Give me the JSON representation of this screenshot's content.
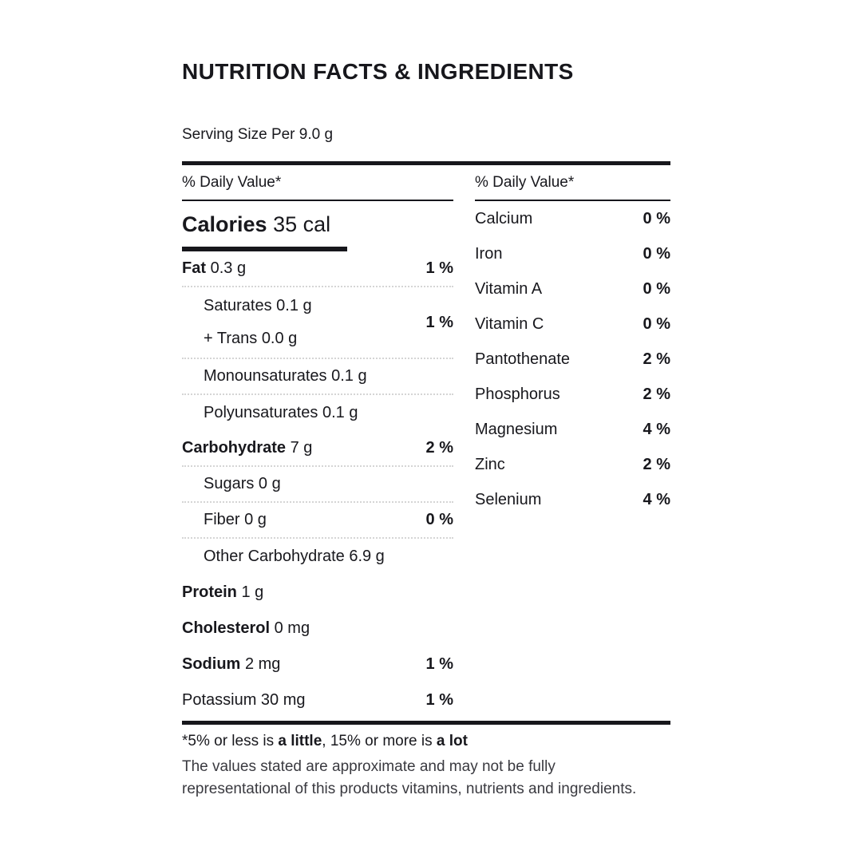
{
  "header": {
    "title": "NUTRITION FACTS & INGREDIENTS",
    "serving_size": "Serving Size Per 9.0 g"
  },
  "left": {
    "header": "% Daily Value*",
    "calories": {
      "label": "Calories",
      "value": "35 cal"
    },
    "rows": [
      {
        "bold": "Fat",
        "rest": "0.3 g",
        "percent": "1 %"
      },
      {
        "line1": "Saturates 0.1 g",
        "line2": "+ Trans 0.0 g",
        "percent": "1 %"
      },
      {
        "rest": "Monounsaturates 0.1 g"
      },
      {
        "rest": "Polyunsaturates 0.1 g"
      },
      {
        "bold": "Carbohydrate",
        "rest": "7 g",
        "percent": "2 %"
      },
      {
        "rest": "Sugars 0 g"
      },
      {
        "rest": "Fiber 0 g",
        "percent": "0 %"
      },
      {
        "rest": "Other Carbohydrate 6.9 g"
      },
      {
        "bold": "Protein",
        "rest": "1 g"
      },
      {
        "bold": "Cholesterol",
        "rest": "0 mg"
      },
      {
        "bold": "Sodium",
        "rest": "2 mg",
        "percent": "1 %"
      },
      {
        "rest": "Potassium 30 mg",
        "percent": "1 %"
      }
    ]
  },
  "right": {
    "header": "% Daily Value*",
    "rows": [
      {
        "label": "Calcium",
        "value": "0 %"
      },
      {
        "label": "Iron",
        "value": "0 %"
      },
      {
        "label": "Vitamin A",
        "value": "0 %"
      },
      {
        "label": "Vitamin C",
        "value": "0 %"
      },
      {
        "label": "Pantothenate",
        "value": "2 %"
      },
      {
        "label": "Phosphorus",
        "value": "2 %"
      },
      {
        "label": "Magnesium",
        "value": "4 %"
      },
      {
        "label": "Zinc",
        "value": "2 %"
      },
      {
        "label": "Selenium",
        "value": "4 %"
      }
    ]
  },
  "footnote": {
    "line1_pre": "*5% or less is ",
    "line1_bold1": "a little",
    "line1_mid": ", 15% or more is ",
    "line1_bold2": "a lot",
    "line2": "The values stated are approximate and may not be fully",
    "line3": "representational of this products vitamins, nutrients and ingredients."
  },
  "colors": {
    "text": "#17171c",
    "muted_text": "#3a3a40",
    "divider_dotted": "#d5d5d5",
    "bar": "#17171c"
  }
}
